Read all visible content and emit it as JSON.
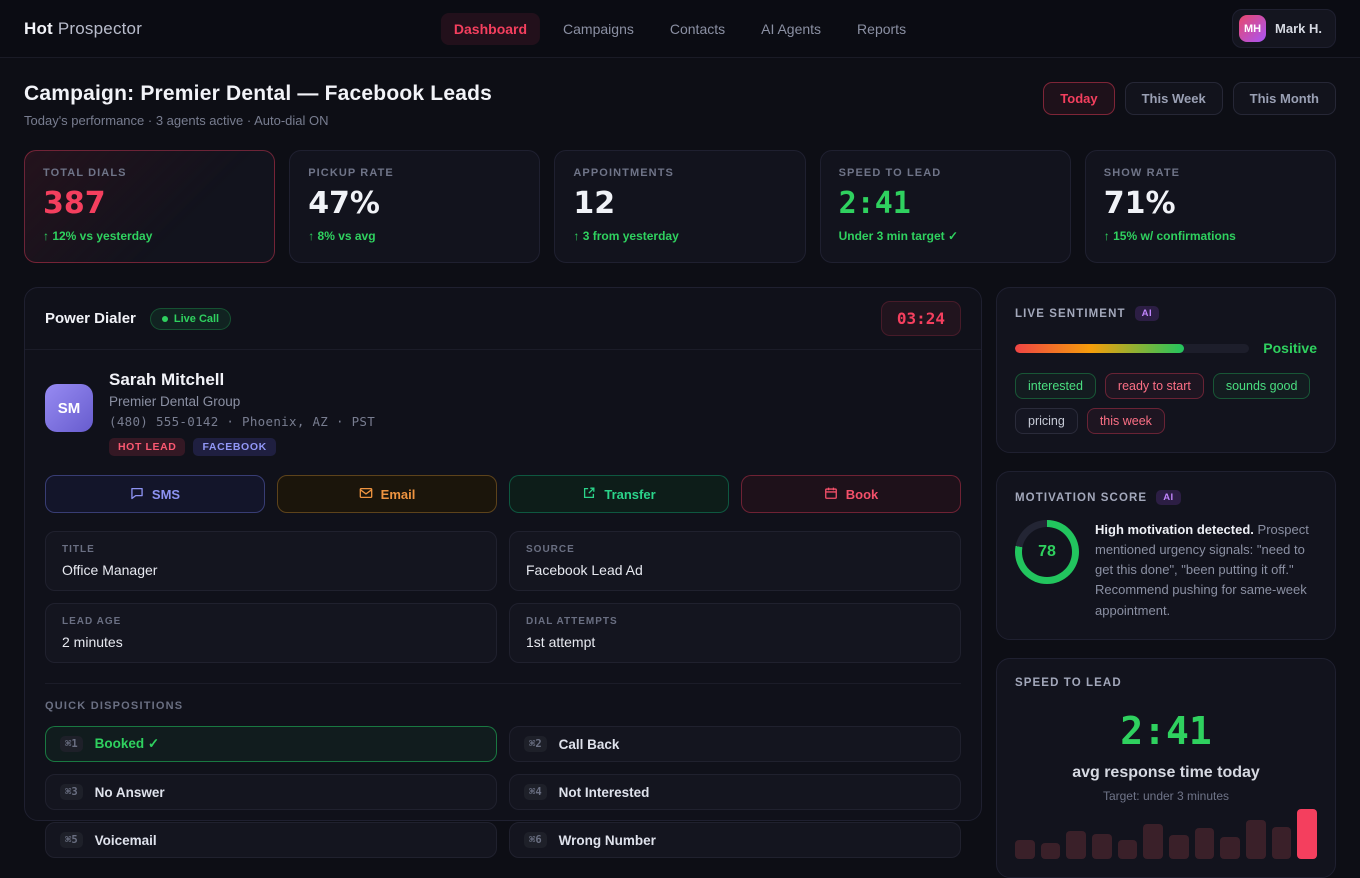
{
  "brand": {
    "bold": "Hot",
    "light": "Prospector"
  },
  "nav": {
    "items": [
      {
        "label": "Dashboard",
        "active": true
      },
      {
        "label": "Campaigns",
        "active": false
      },
      {
        "label": "Contacts",
        "active": false
      },
      {
        "label": "AI Agents",
        "active": false
      },
      {
        "label": "Reports",
        "active": false
      }
    ]
  },
  "user": {
    "initials": "MH",
    "name": "Mark H."
  },
  "header": {
    "title": "Campaign: Premier Dental — Facebook Leads",
    "subtitle": "Today's performance · 3 agents active · Auto-dial ON",
    "ranges": [
      {
        "label": "Today",
        "active": true
      },
      {
        "label": "This Week",
        "active": false
      },
      {
        "label": "This Month",
        "active": false
      }
    ]
  },
  "kpis": [
    {
      "label": "TOTAL DIALS",
      "value": "387",
      "delta": "↑ 12% vs yesterday"
    },
    {
      "label": "PICKUP RATE",
      "value": "47%",
      "delta": "↑ 8% vs avg"
    },
    {
      "label": "APPOINTMENTS",
      "value": "12",
      "delta": "↑ 3 from yesterday"
    },
    {
      "label": "SPEED TO LEAD",
      "value": "2:41",
      "delta": "Under 3 min target ✓"
    },
    {
      "label": "SHOW RATE",
      "value": "71%",
      "delta": "↑ 15% w/ confirmations"
    }
  ],
  "dialer": {
    "title": "Power Dialer",
    "live_badge": "Live Call",
    "timer": "03:24",
    "contact": {
      "initials": "SM",
      "name": "Sarah Mitchell",
      "company": "Premier Dental Group",
      "phone_line": "(480) 555-0142 · Phoenix, AZ · PST",
      "badges": [
        {
          "label": "HOT LEAD"
        },
        {
          "label": "FACEBOOK"
        }
      ]
    },
    "actions": [
      {
        "label": "SMS",
        "icon": "chat-bubble-icon"
      },
      {
        "label": "Email",
        "icon": "envelope-icon"
      },
      {
        "label": "Transfer",
        "icon": "external-link-icon"
      },
      {
        "label": "Book",
        "icon": "calendar-icon"
      }
    ],
    "fields": [
      {
        "label": "TITLE",
        "value": "Office Manager"
      },
      {
        "label": "SOURCE",
        "value": "Facebook Lead Ad"
      },
      {
        "label": "LEAD AGE",
        "value": "2 minutes"
      },
      {
        "label": "DIAL ATTEMPTS",
        "value": "1st attempt"
      }
    ],
    "dispositions_title": "QUICK DISPOSITIONS",
    "dispositions": [
      {
        "key": "⌘1",
        "label": "Booked ✓",
        "selected": true
      },
      {
        "key": "⌘2",
        "label": "Call Back",
        "selected": false
      },
      {
        "key": "⌘3",
        "label": "No Answer",
        "selected": false
      },
      {
        "key": "⌘4",
        "label": "Not Interested",
        "selected": false
      },
      {
        "key": "⌘5",
        "label": "Voicemail",
        "selected": false
      },
      {
        "key": "⌘6",
        "label": "Wrong Number",
        "selected": false
      }
    ]
  },
  "sentiment": {
    "title": "LIVE SENTIMENT",
    "ai_badge": "AI",
    "label": "Positive",
    "fill_percent": 72,
    "tags": [
      {
        "label": "interested",
        "tone": "green"
      },
      {
        "label": "ready to start",
        "tone": "red"
      },
      {
        "label": "sounds good",
        "tone": "green"
      },
      {
        "label": "pricing",
        "tone": "gray"
      },
      {
        "label": "this week",
        "tone": "red"
      }
    ]
  },
  "motivation": {
    "title": "MOTIVATION SCORE",
    "ai_badge": "AI",
    "score": 78,
    "lead": "High motivation detected.",
    "body": " Prospect mentioned urgency signals: \"need to get this done\", \"been putting it off.\" Recommend pushing for same-week appointment."
  },
  "speed": {
    "title": "SPEED TO LEAD",
    "time": "2:41",
    "caption": "avg response time today",
    "target": "Target: under 3 minutes",
    "chart_data": {
      "type": "bar",
      "values": [
        34,
        28,
        50,
        44,
        34,
        62,
        42,
        54,
        38,
        70,
        56,
        88
      ],
      "highlight_index": 11,
      "bar_color": "#3a2029",
      "highlight_color": "#f43f5e"
    }
  },
  "colors": {
    "accent_red": "#f43f5e",
    "accent_green": "#2fd15f",
    "accent_purple": "#c084fc"
  }
}
